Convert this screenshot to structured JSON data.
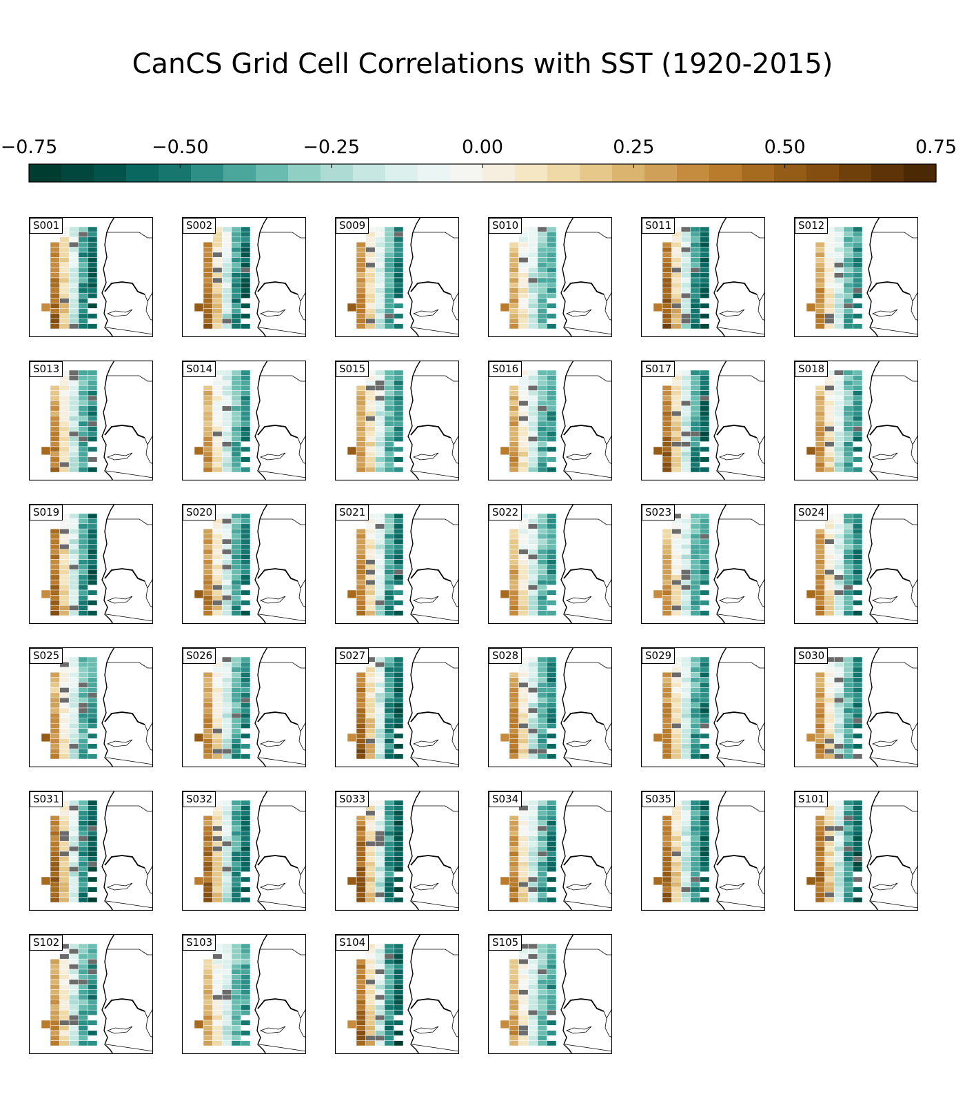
{
  "chart_data": {
    "type": "heatmap",
    "title": "CanCS Grid Cell Correlations with SST (1920-2015)",
    "colorbar": {
      "ticks": [
        "−0.75",
        "−0.50",
        "−0.25",
        "0.00",
        "0.25",
        "0.50",
        "0.75"
      ],
      "range": [
        -0.75,
        0.75
      ],
      "bins": 28,
      "colors": [
        "#003c30",
        "#01473e",
        "#02544a",
        "#0a6760",
        "#17776f",
        "#2e8f86",
        "#4ba69c",
        "#6bbcb0",
        "#90d0c4",
        "#aedcd4",
        "#c7e8e2",
        "#dcf1ee",
        "#ebf5f3",
        "#f5f5f2",
        "#f6efe0",
        "#f5e6c4",
        "#efd9a6",
        "#e6c98a",
        "#dbb56f",
        "#cfa058",
        "#c58b3f",
        "#b97b2c",
        "#a76b20",
        "#945c16",
        "#834e0f",
        "#6f400a",
        "#5d3307",
        "#4b2904"
      ],
      "missing_color": "#6b6b6b",
      "orientation": "horizontal",
      "placement": "top"
    },
    "grid": {
      "rows": 20,
      "cols": 5,
      "missing_value": null
    },
    "panels": [
      {
        "label": "S001"
      },
      {
        "label": "S002"
      },
      {
        "label": "S009"
      },
      {
        "label": "S010"
      },
      {
        "label": "S011"
      },
      {
        "label": "S012"
      },
      {
        "label": "S013"
      },
      {
        "label": "S014"
      },
      {
        "label": "S015"
      },
      {
        "label": "S016"
      },
      {
        "label": "S017"
      },
      {
        "label": "S018"
      },
      {
        "label": "S019"
      },
      {
        "label": "S020"
      },
      {
        "label": "S021"
      },
      {
        "label": "S022"
      },
      {
        "label": "S023"
      },
      {
        "label": "S024"
      },
      {
        "label": "S025"
      },
      {
        "label": "S026"
      },
      {
        "label": "S027"
      },
      {
        "label": "S028"
      },
      {
        "label": "S029"
      },
      {
        "label": "S030"
      },
      {
        "label": "S031"
      },
      {
        "label": "S032"
      },
      {
        "label": "S033"
      },
      {
        "label": "S034"
      },
      {
        "label": "S035"
      },
      {
        "label": "S101"
      },
      {
        "label": "S102"
      },
      {
        "label": "S103"
      },
      {
        "label": "S104"
      },
      {
        "label": "S105"
      }
    ]
  }
}
